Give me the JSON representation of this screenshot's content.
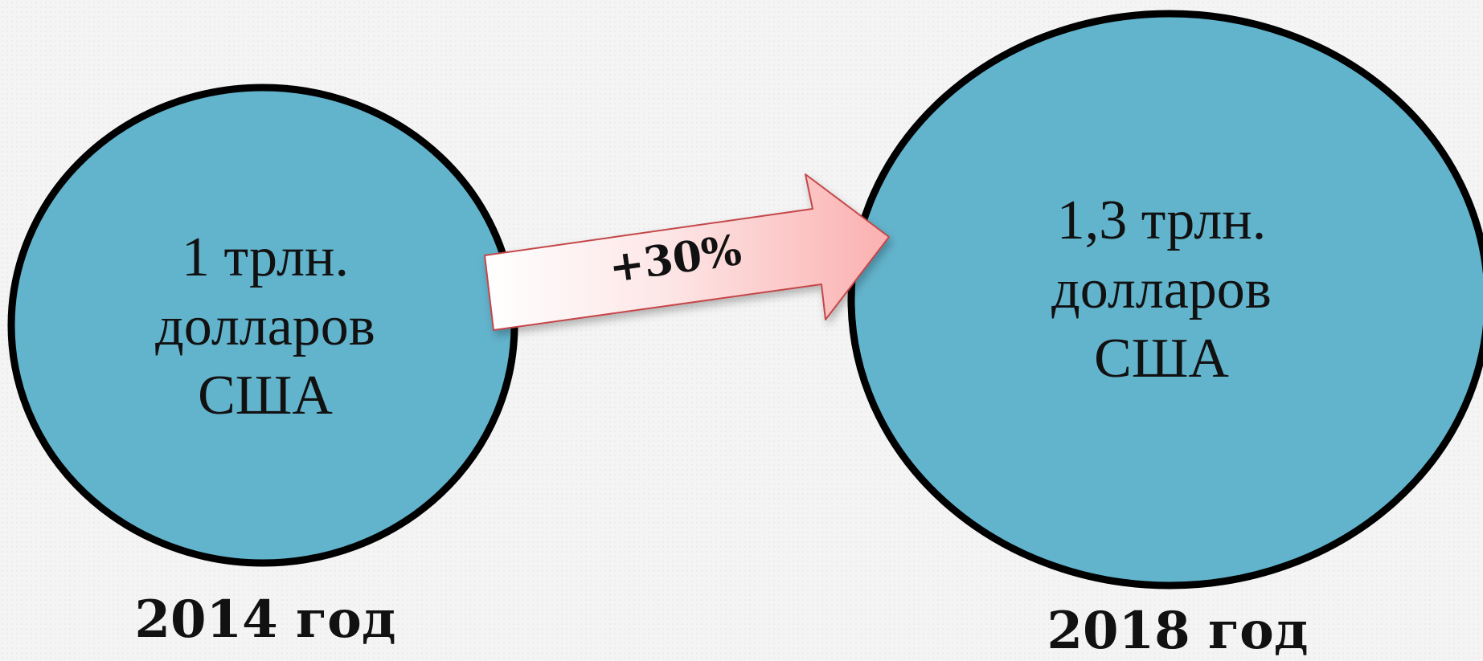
{
  "bubble_2014": {
    "line1": "1 трлн.",
    "line2": "долларов",
    "line3": "США",
    "year": "2014 год"
  },
  "bubble_2018": {
    "line1": "1,3 трлн.",
    "line2": "долларов",
    "line3": "США",
    "year": "2018 год"
  },
  "growth": {
    "label": "+30%"
  },
  "colors": {
    "bubble_fill": "#62b3cc",
    "bubble_stroke": "#000000",
    "arrow_fill_light": "#ffffff",
    "arrow_fill_dark": "#fbb7b7",
    "arrow_stroke": "#c4464a"
  }
}
